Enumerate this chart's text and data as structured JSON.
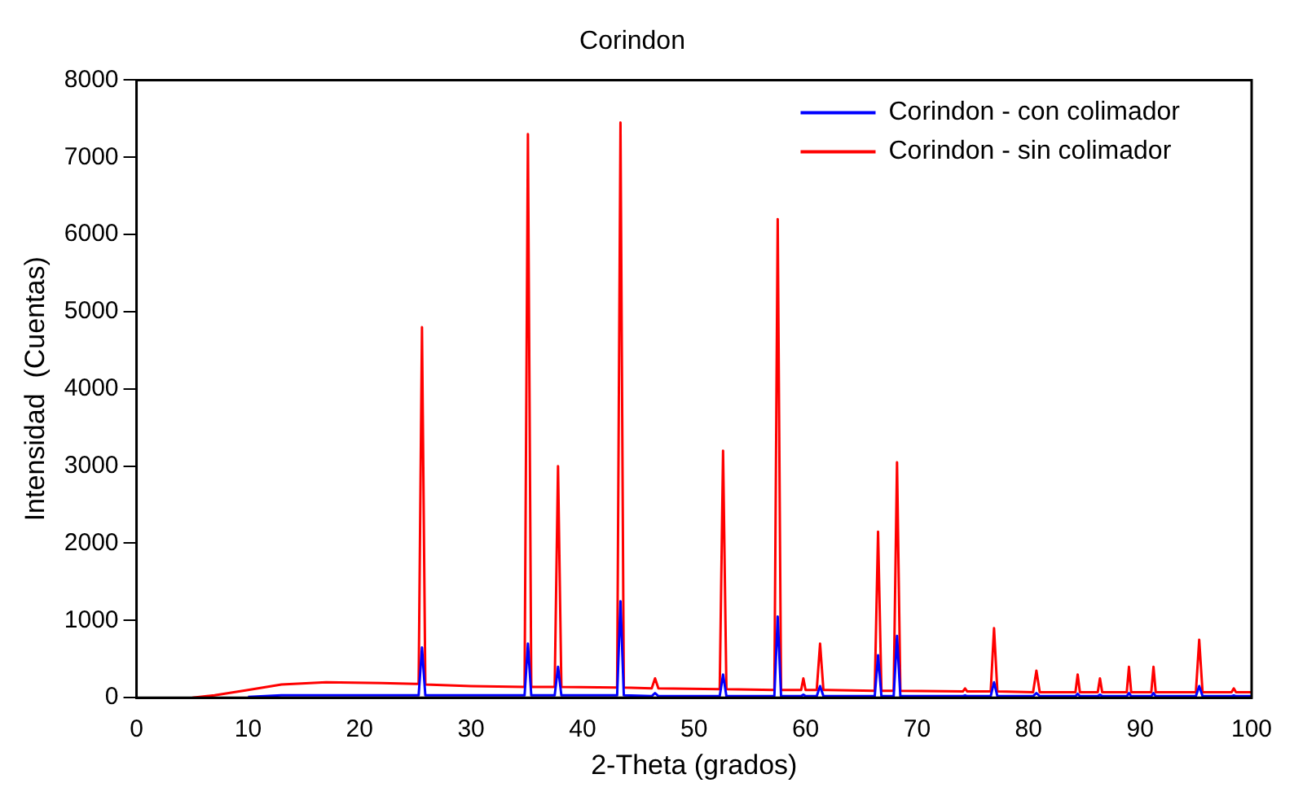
{
  "chart_data": {
    "type": "line",
    "title": "Corindon",
    "xlabel": "2-Theta (grados)",
    "ylabel": "Intensidad  (Cuentas)",
    "x": [
      5,
      7,
      10,
      13,
      17,
      22,
      25,
      25.3,
      25.6,
      25.9,
      30,
      34.8,
      35.1,
      35.4,
      37.5,
      37.8,
      38.1,
      43.1,
      43.4,
      43.7,
      46.2,
      46.5,
      46.8,
      52.3,
      52.6,
      52.9,
      57.2,
      57.5,
      57.8,
      59.6,
      59.8,
      60,
      61.0,
      61.3,
      61.6,
      66.2,
      66.5,
      66.8,
      67.9,
      68.2,
      68.5,
      74.1,
      74.3,
      74.5,
      76.6,
      76.9,
      77.2,
      80.4,
      80.7,
      81.0,
      84.2,
      84.4,
      84.6,
      86.2,
      86.4,
      86.6,
      88.8,
      89.0,
      89.2,
      91.0,
      91.2,
      91.4,
      95.0,
      95.3,
      95.6,
      98.2,
      98.4,
      98.6,
      100
    ],
    "series": [
      {
        "name": "Corindon - con colimador",
        "color": "#0000ff",
        "values": [
          null,
          null,
          10,
          30,
          30,
          30,
          30,
          30,
          650,
          30,
          30,
          30,
          700,
          30,
          30,
          400,
          30,
          30,
          1250,
          30,
          20,
          60,
          20,
          20,
          300,
          20,
          20,
          1050,
          20,
          20,
          40,
          20,
          20,
          150,
          20,
          20,
          550,
          20,
          20,
          800,
          20,
          20,
          30,
          20,
          20,
          200,
          20,
          20,
          60,
          20,
          20,
          50,
          20,
          20,
          40,
          20,
          20,
          60,
          20,
          20,
          60,
          20,
          20,
          150,
          20,
          20,
          30,
          20,
          20
        ]
      },
      {
        "name": "Corindon - sin colimador",
        "color": "#ff0000",
        "values": [
          0,
          30,
          100,
          170,
          200,
          190,
          180,
          180,
          4800,
          170,
          150,
          140,
          7300,
          140,
          140,
          3000,
          140,
          130,
          7450,
          130,
          120,
          250,
          120,
          110,
          3200,
          110,
          100,
          6200,
          100,
          100,
          250,
          100,
          100,
          700,
          100,
          90,
          2150,
          90,
          90,
          3050,
          90,
          80,
          120,
          80,
          80,
          900,
          80,
          70,
          350,
          70,
          70,
          300,
          70,
          70,
          250,
          70,
          70,
          400,
          70,
          70,
          400,
          70,
          70,
          750,
          70,
          70,
          120,
          70,
          70
        ]
      }
    ],
    "xlim": [
      0,
      100
    ],
    "xticks": [
      0,
      10,
      20,
      30,
      40,
      50,
      60,
      70,
      80,
      90,
      100
    ],
    "ylim": [
      0,
      8000
    ],
    "yticks": [
      0,
      1000,
      2000,
      3000,
      4000,
      5000,
      6000,
      7000,
      8000
    ],
    "grid": false,
    "legend": "top right",
    "marker": "none",
    "line_style": "solid"
  }
}
